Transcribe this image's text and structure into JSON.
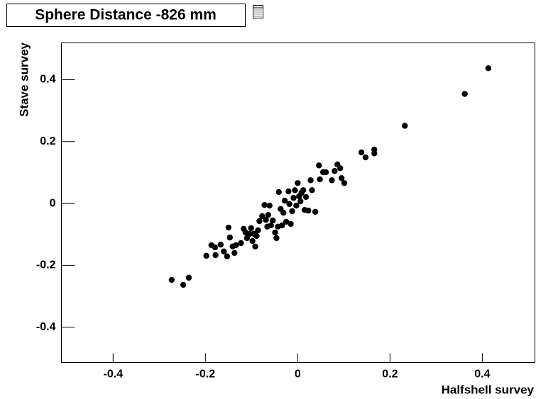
{
  "chart_data": {
    "type": "scatter",
    "title": "Sphere Distance -826 mm",
    "x_label": "Halfshell survey",
    "y_label": "Stave survey",
    "color": "#000000",
    "xlim": [
      -0.512,
      0.514
    ],
    "ylim": [
      -0.514,
      0.519
    ],
    "xticks": [
      -0.4,
      -0.2,
      0,
      0.2,
      0.4
    ],
    "yticks": [
      -0.4,
      -0.2,
      0,
      0.2,
      0.4
    ],
    "x": [
      -0.273,
      -0.248,
      -0.236,
      -0.198,
      -0.187,
      -0.179,
      -0.178,
      -0.167,
      -0.16,
      -0.153,
      -0.15,
      -0.147,
      -0.141,
      -0.137,
      -0.134,
      -0.123,
      -0.117,
      -0.113,
      -0.11,
      -0.104,
      -0.101,
      -0.098,
      -0.095,
      -0.092,
      -0.089,
      -0.086,
      -0.083,
      -0.077,
      -0.072,
      -0.069,
      -0.066,
      -0.064,
      -0.061,
      -0.058,
      -0.054,
      -0.049,
      -0.046,
      -0.043,
      -0.041,
      -0.037,
      -0.034,
      -0.031,
      -0.028,
      -0.025,
      -0.02,
      -0.018,
      -0.015,
      -0.012,
      -0.009,
      -0.006,
      -0.003,
      0,
      0.003,
      0.006,
      0.008,
      0.012,
      0.015,
      0.018,
      0.023,
      0.028,
      0.031,
      0.038,
      0.046,
      0.048,
      0.055,
      0.061,
      0.074,
      0.08,
      0.086,
      0.092,
      0.095,
      0.101,
      0.138,
      0.147,
      0.166,
      0.166,
      0.232,
      0.362,
      0.413
    ],
    "values": [
      -0.247,
      -0.263,
      -0.24,
      -0.169,
      -0.135,
      -0.142,
      -0.167,
      -0.133,
      -0.155,
      -0.171,
      -0.078,
      -0.11,
      -0.139,
      -0.16,
      -0.135,
      -0.128,
      -0.082,
      -0.094,
      -0.112,
      -0.098,
      -0.08,
      -0.121,
      -0.098,
      -0.139,
      -0.105,
      -0.087,
      -0.057,
      -0.041,
      -0.005,
      -0.053,
      -0.075,
      -0.037,
      -0.007,
      -0.071,
      -0.055,
      -0.094,
      -0.112,
      -0.075,
      0.037,
      -0.018,
      -0.071,
      -0.03,
      0.009,
      -0.059,
      0.039,
      -0.002,
      -0.066,
      -0.025,
      0.018,
      0.043,
      -0.007,
      0.066,
      0.023,
      0.007,
      0.034,
      0.043,
      -0.021,
      0.021,
      -0.023,
      0.075,
      0.043,
      -0.027,
      0.123,
      0.078,
      0.101,
      0.101,
      0.075,
      0.105,
      0.126,
      0.114,
      0.082,
      0.066,
      0.165,
      0.149,
      0.174,
      0.162,
      0.251,
      0.354,
      0.437
    ]
  }
}
